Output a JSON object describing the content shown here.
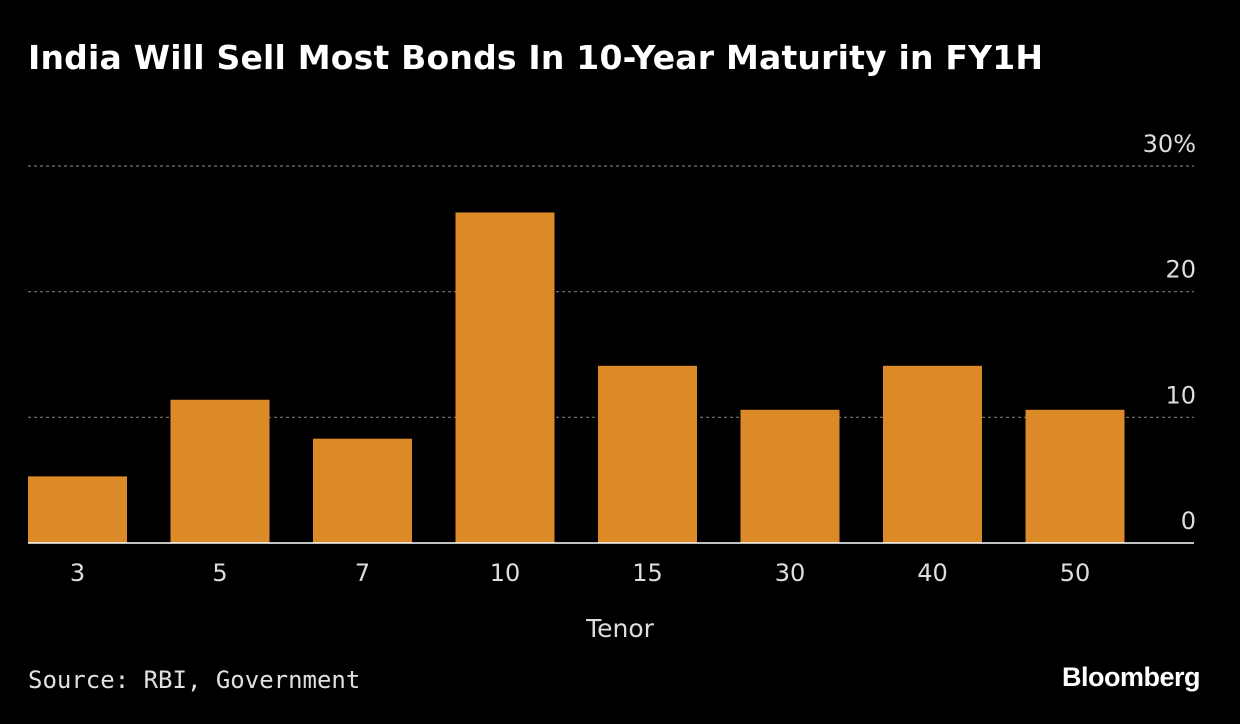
{
  "title": "India Will Sell Most Bonds In 10-Year Maturity in FY1H",
  "source": "Source: RBI, Government",
  "brand": "Bloomberg",
  "colors": {
    "background": "#000000",
    "bar": "#dc8a28",
    "grid": "#777777",
    "axis": "#ffffff",
    "text": "#ffffff"
  },
  "chart_data": {
    "type": "bar",
    "title": "India Will Sell Most Bonds In 10-Year Maturity in FY1H",
    "xlabel": "Tenor",
    "ylabel": "",
    "categories": [
      "3",
      "5",
      "7",
      "10",
      "15",
      "30",
      "40",
      "50"
    ],
    "values": [
      5.3,
      11.4,
      8.3,
      26.3,
      14.1,
      10.6,
      14.1,
      10.6
    ],
    "ylim": [
      0,
      30
    ],
    "yticks": [
      0,
      10,
      20,
      30
    ],
    "ytick_labels": [
      "0",
      "10",
      "20",
      "30%"
    ],
    "grid": true,
    "y_axis_side": "right"
  }
}
